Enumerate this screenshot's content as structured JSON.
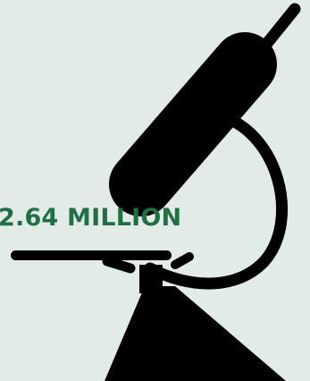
{
  "stat": {
    "value": "2.64 MILLION"
  },
  "icon": "microscope-icon",
  "colors": {
    "background": "#e3ebe8",
    "icon": "#000000",
    "stat_text": "#1f7045"
  }
}
